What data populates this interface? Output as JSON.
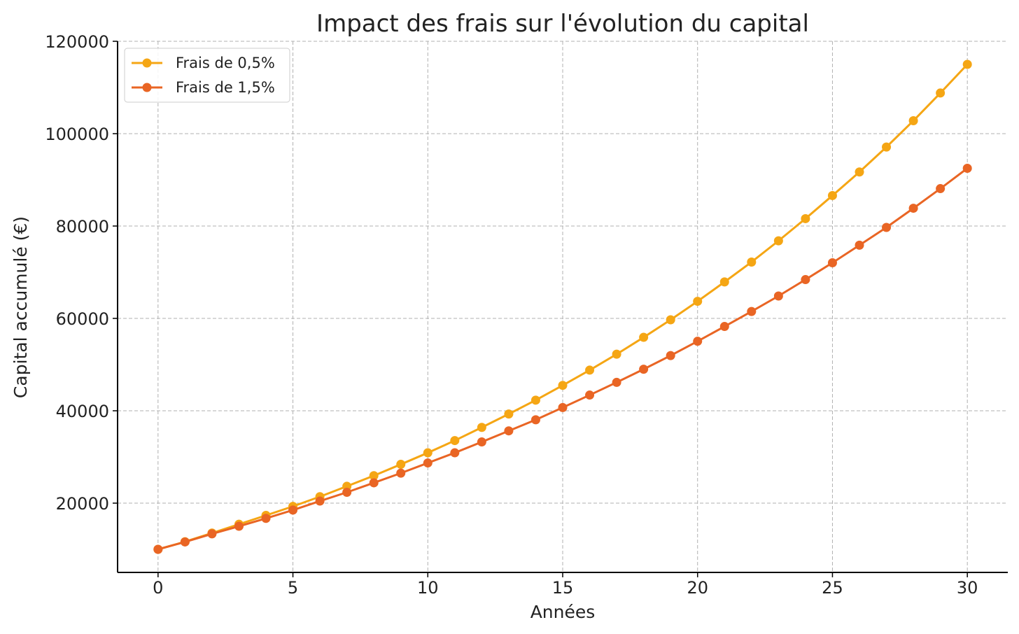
{
  "chart_data": {
    "type": "line",
    "title": "Impact des frais sur l'évolution du capital",
    "xlabel": "Années",
    "ylabel": "Capital accumulé (€)",
    "xlim": [
      -1.5,
      31.5
    ],
    "ylim": [
      5000,
      120000
    ],
    "xticks": [
      0,
      5,
      10,
      15,
      20,
      25,
      30
    ],
    "xtick_labels": [
      "0",
      "5",
      "10",
      "15",
      "20",
      "25",
      "30"
    ],
    "yticks": [
      20000,
      40000,
      60000,
      80000,
      100000,
      120000
    ],
    "ytick_labels": [
      "20000",
      "40000",
      "60000",
      "80000",
      "100000",
      "120000"
    ],
    "grid": true,
    "legend_position": "top-left",
    "x": [
      0,
      1,
      2,
      3,
      4,
      5,
      6,
      7,
      8,
      9,
      10,
      11,
      12,
      13,
      14,
      15,
      16,
      17,
      18,
      19,
      20,
      21,
      22,
      23,
      24,
      25,
      26,
      27,
      28,
      29,
      30
    ],
    "series": [
      {
        "name": "Frais de 0,5%",
        "color": "#f5a614",
        "values": [
          10000,
          11650,
          13520,
          15430,
          17350,
          19300,
          21400,
          23650,
          25950,
          28400,
          30900,
          33550,
          36400,
          39300,
          42300,
          45500,
          48800,
          52250,
          55900,
          59700,
          63700,
          67900,
          72200,
          76800,
          81600,
          86600,
          91700,
          97100,
          102800,
          108800,
          115000
        ]
      },
      {
        "name": "Frais de 1,5%",
        "color": "#e96524",
        "values": [
          10000,
          11600,
          13350,
          15000,
          16700,
          18500,
          20450,
          22350,
          24400,
          26500,
          28700,
          30900,
          33250,
          35650,
          38050,
          40700,
          43400,
          46150,
          49000,
          51950,
          55050,
          58250,
          61500,
          64850,
          68400,
          72050,
          75850,
          79700,
          83850,
          88100,
          92500
        ]
      }
    ]
  }
}
